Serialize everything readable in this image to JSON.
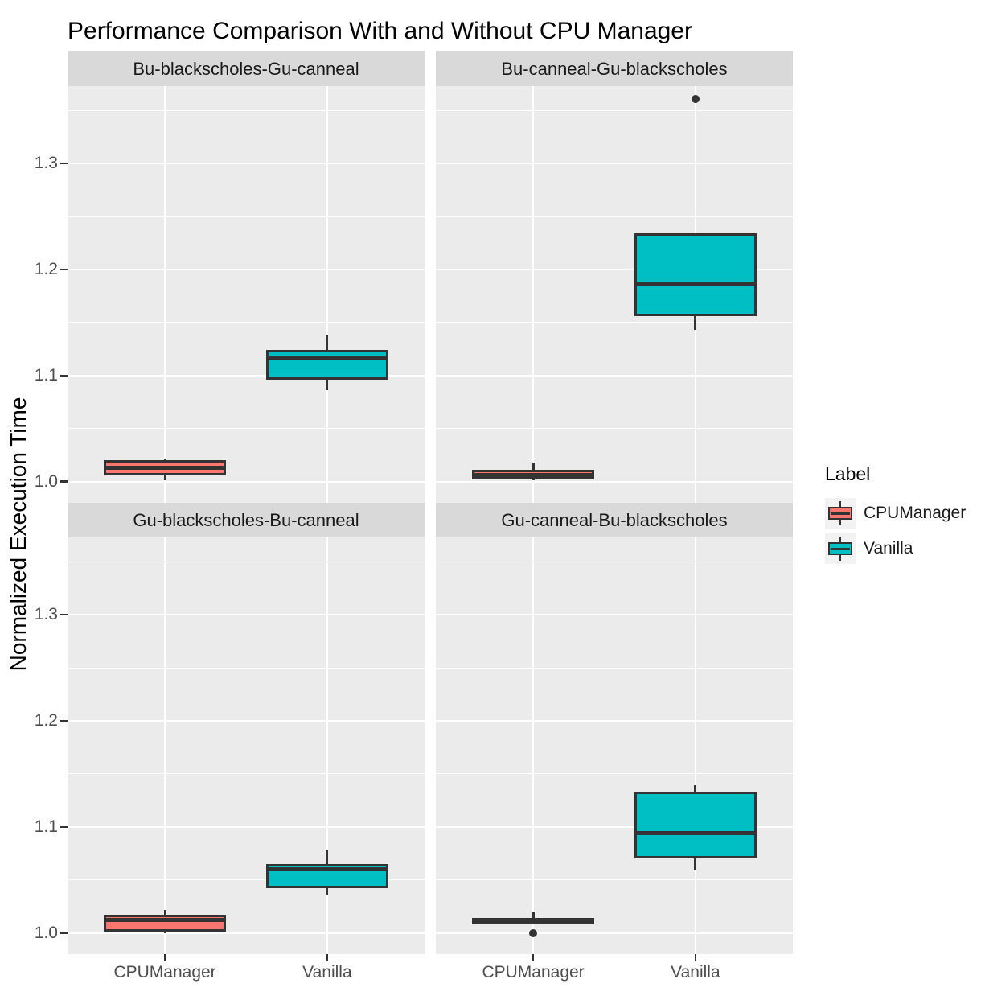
{
  "title": "Performance Comparison With and Without CPU Manager",
  "y_axis": {
    "title": "Normalized Execution Time",
    "tick_labels": [
      "1.0",
      "1.1",
      "1.2",
      "1.3"
    ]
  },
  "x_axis": {
    "categories": [
      "CPUManager",
      "Vanilla"
    ]
  },
  "legend": {
    "title": "Label",
    "position": "right",
    "entries": [
      {
        "label": "CPUManager",
        "color": "#F8766D"
      },
      {
        "label": "Vanilla",
        "color": "#00BFC4"
      }
    ]
  },
  "colors": {
    "box_border": "#333333",
    "panel_bg": "#EBEBEB",
    "strip_bg": "#D9D9D9",
    "grid": "#FFFFFF",
    "legend_key_bg": "#F2F2F2",
    "tick_label": "#4D4D4D",
    "tick_mark": "#333333"
  },
  "chart_data": {
    "type": "boxplot",
    "title": "Performance Comparison With and Without CPU Manager",
    "xlabel": "",
    "ylabel": "Normalized Execution Time",
    "ylim": [
      0.98,
      1.373
    ],
    "yticks": [
      1.0,
      1.1,
      1.2,
      1.3
    ],
    "ytick_labels": [
      "1.0",
      "1.1",
      "1.2",
      "1.3"
    ],
    "minor_gridlines": [
      1.05,
      1.15,
      1.25,
      1.35
    ],
    "categories": [
      "CPUManager",
      "Vanilla"
    ],
    "grid": "on",
    "legend_position": "right",
    "facets": [
      {
        "title": "Bu-blackscholes-Gu-canneal",
        "row": 0,
        "col": 0,
        "boxes": [
          {
            "category": "CPUManager",
            "whisker_low": 1.001,
            "q1": 1.006,
            "median": 1.013,
            "q3": 1.02,
            "whisker_high": 1.022,
            "outliers": []
          },
          {
            "category": "Vanilla",
            "whisker_low": 1.086,
            "q1": 1.096,
            "median": 1.117,
            "q3": 1.124,
            "whisker_high": 1.138,
            "outliers": []
          }
        ]
      },
      {
        "title": "Bu-canneal-Gu-blackscholes",
        "row": 0,
        "col": 1,
        "boxes": [
          {
            "category": "CPUManager",
            "whisker_low": 1.001,
            "q1": 1.002,
            "median": 1.006,
            "q3": 1.011,
            "whisker_high": 1.018,
            "outliers": []
          },
          {
            "category": "Vanilla",
            "whisker_low": 1.143,
            "q1": 1.156,
            "median": 1.187,
            "q3": 1.234,
            "whisker_high": 1.234,
            "outliers": [
              1.361
            ]
          }
        ]
      },
      {
        "title": "Gu-blackscholes-Bu-canneal",
        "row": 1,
        "col": 0,
        "boxes": [
          {
            "category": "CPUManager",
            "whisker_low": 1.0,
            "q1": 1.001,
            "median": 1.012,
            "q3": 1.017,
            "whisker_high": 1.022,
            "outliers": []
          },
          {
            "category": "Vanilla",
            "whisker_low": 1.036,
            "q1": 1.042,
            "median": 1.06,
            "q3": 1.065,
            "whisker_high": 1.078,
            "outliers": []
          }
        ]
      },
      {
        "title": "Gu-canneal-Bu-blackscholes",
        "row": 1,
        "col": 1,
        "boxes": [
          {
            "category": "CPUManager",
            "whisker_low": 1.008,
            "q1": 1.008,
            "median": 1.011,
            "q3": 1.014,
            "whisker_high": 1.02,
            "outliers": [
              1.0
            ]
          },
          {
            "category": "Vanilla",
            "whisker_low": 1.059,
            "q1": 1.07,
            "median": 1.094,
            "q3": 1.133,
            "whisker_high": 1.139,
            "outliers": []
          }
        ]
      }
    ]
  }
}
